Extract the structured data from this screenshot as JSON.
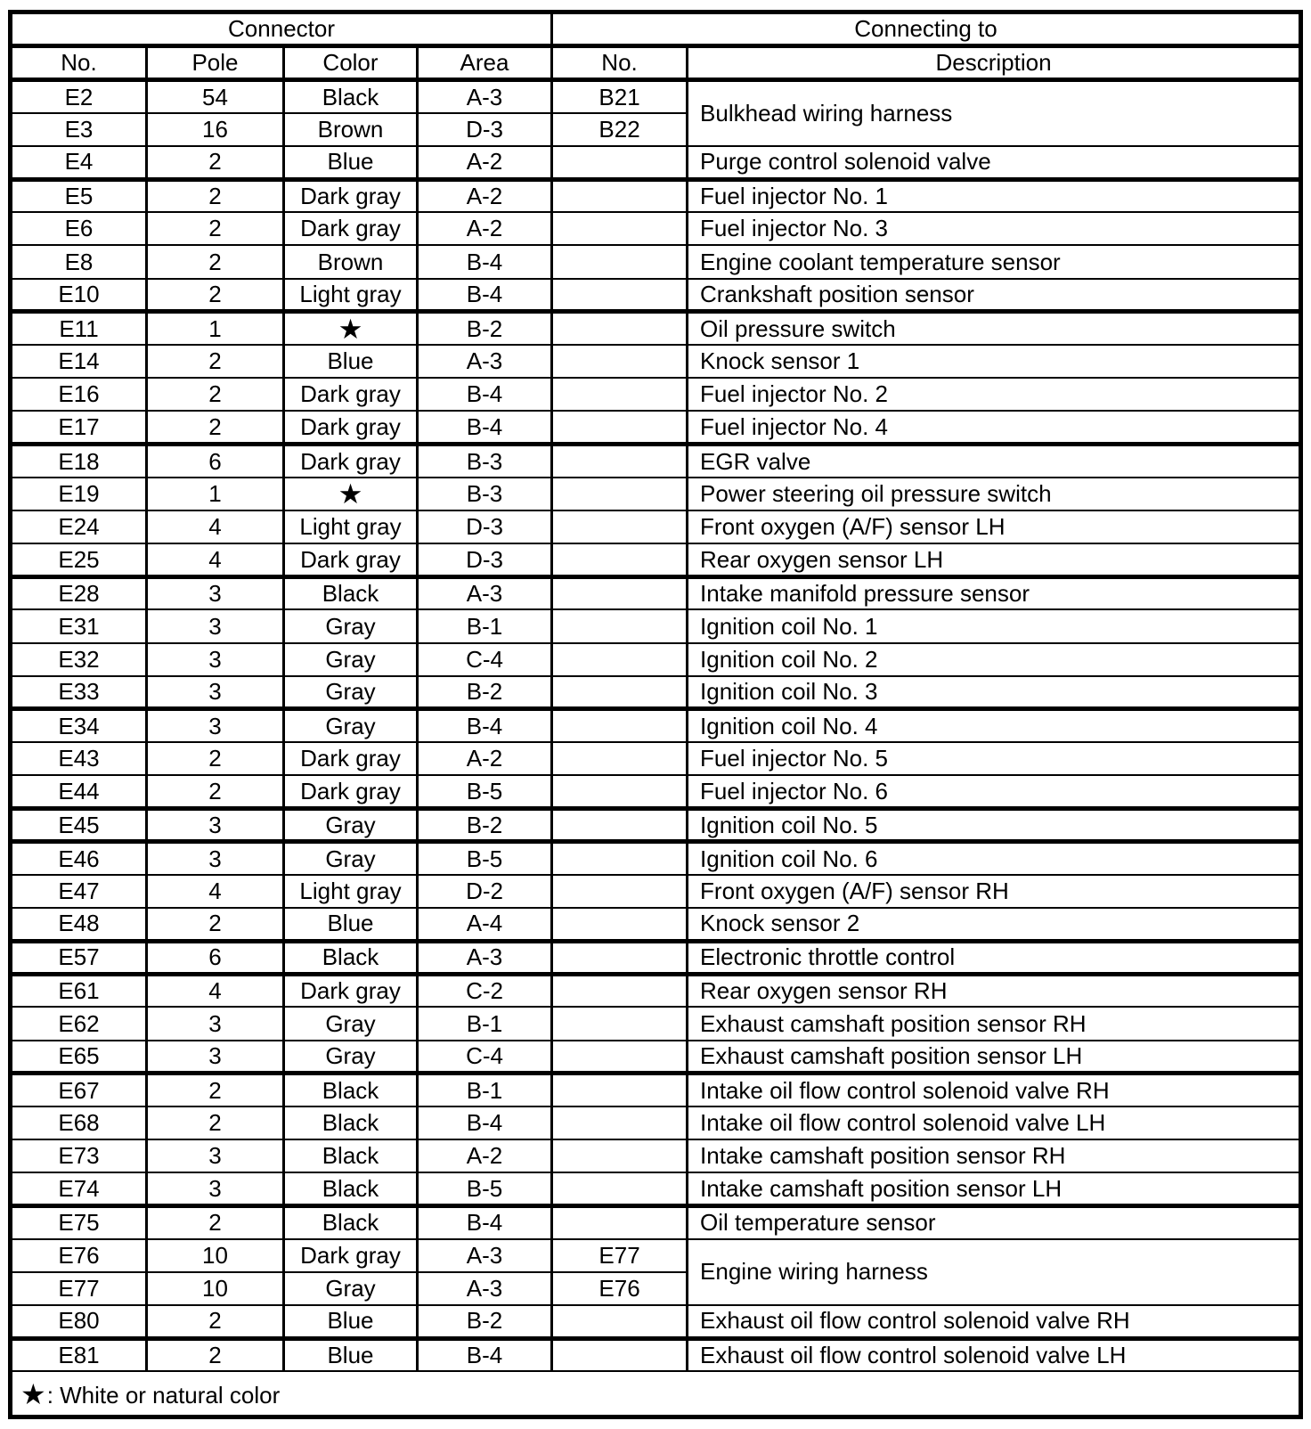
{
  "table": {
    "group_headers": {
      "connector": "Connector",
      "connecting_to": "Connecting to"
    },
    "columns": [
      "No.",
      "Pole",
      "Color",
      "Area",
      "No.",
      "Description"
    ],
    "rows": [
      {
        "no": "E2",
        "pole": "54",
        "color": "Black",
        "area": "A-3",
        "to_no": "B21",
        "description": "Bulkhead wiring harness",
        "desc_rowspan": 2
      },
      {
        "no": "E3",
        "pole": "16",
        "color": "Brown",
        "area": "D-3",
        "to_no": "B22",
        "desc_merged": true
      },
      {
        "no": "E4",
        "pole": "2",
        "color": "Blue",
        "area": "A-2",
        "to_no": "",
        "description": "Purge control solenoid valve",
        "thick": true
      },
      {
        "no": "E5",
        "pole": "2",
        "color": "Dark gray",
        "area": "A-2",
        "to_no": "",
        "description": "Fuel injector No. 1"
      },
      {
        "no": "E6",
        "pole": "2",
        "color": "Dark gray",
        "area": "A-2",
        "to_no": "",
        "description": "Fuel injector No. 3"
      },
      {
        "no": "E8",
        "pole": "2",
        "color": "Brown",
        "area": "B-4",
        "to_no": "",
        "description": "Engine coolant temperature sensor"
      },
      {
        "no": "E10",
        "pole": "2",
        "color": "Light gray",
        "area": "B-4",
        "to_no": "",
        "description": "Crankshaft position sensor",
        "thick": true
      },
      {
        "no": "E11",
        "pole": "1",
        "color": "★",
        "area": "B-2",
        "to_no": "",
        "description": "Oil pressure switch",
        "star": true
      },
      {
        "no": "E14",
        "pole": "2",
        "color": "Blue",
        "area": "A-3",
        "to_no": "",
        "description": "Knock sensor 1"
      },
      {
        "no": "E16",
        "pole": "2",
        "color": "Dark gray",
        "area": "B-4",
        "to_no": "",
        "description": "Fuel injector No. 2"
      },
      {
        "no": "E17",
        "pole": "2",
        "color": "Dark gray",
        "area": "B-4",
        "to_no": "",
        "description": "Fuel injector No. 4",
        "thick": true
      },
      {
        "no": "E18",
        "pole": "6",
        "color": "Dark gray",
        "area": "B-3",
        "to_no": "",
        "description": "EGR valve"
      },
      {
        "no": "E19",
        "pole": "1",
        "color": "★",
        "area": "B-3",
        "to_no": "",
        "description": "Power steering oil pressure switch",
        "star": true
      },
      {
        "no": "E24",
        "pole": "4",
        "color": "Light gray",
        "area": "D-3",
        "to_no": "",
        "description": "Front oxygen (A/F) sensor LH"
      },
      {
        "no": "E25",
        "pole": "4",
        "color": "Dark gray",
        "area": "D-3",
        "to_no": "",
        "description": "Rear oxygen sensor LH",
        "thick": true
      },
      {
        "no": "E28",
        "pole": "3",
        "color": "Black",
        "area": "A-3",
        "to_no": "",
        "description": "Intake manifold pressure sensor"
      },
      {
        "no": "E31",
        "pole": "3",
        "color": "Gray",
        "area": "B-1",
        "to_no": "",
        "description": "Ignition coil No. 1"
      },
      {
        "no": "E32",
        "pole": "3",
        "color": "Gray",
        "area": "C-4",
        "to_no": "",
        "description": "Ignition coil No. 2"
      },
      {
        "no": "E33",
        "pole": "3",
        "color": "Gray",
        "area": "B-2",
        "to_no": "",
        "description": "Ignition coil No. 3",
        "thick": true
      },
      {
        "no": "E34",
        "pole": "3",
        "color": "Gray",
        "area": "B-4",
        "to_no": "",
        "description": "Ignition coil No. 4"
      },
      {
        "no": "E43",
        "pole": "2",
        "color": "Dark gray",
        "area": "A-2",
        "to_no": "",
        "description": "Fuel injector No. 5"
      },
      {
        "no": "E44",
        "pole": "2",
        "color": "Dark gray",
        "area": "B-5",
        "to_no": "",
        "description": "Fuel injector No. 6",
        "thick": true
      },
      {
        "no": "E45",
        "pole": "3",
        "color": "Gray",
        "area": "B-2",
        "to_no": "",
        "description": "Ignition coil No. 5",
        "thick": true
      },
      {
        "no": "E46",
        "pole": "3",
        "color": "Gray",
        "area": "B-5",
        "to_no": "",
        "description": "Ignition coil No. 6"
      },
      {
        "no": "E47",
        "pole": "4",
        "color": "Light gray",
        "area": "D-2",
        "to_no": "",
        "description": "Front oxygen (A/F) sensor RH"
      },
      {
        "no": "E48",
        "pole": "2",
        "color": "Blue",
        "area": "A-4",
        "to_no": "",
        "description": "Knock sensor 2",
        "thick": true
      },
      {
        "no": "E57",
        "pole": "6",
        "color": "Black",
        "area": "A-3",
        "to_no": "",
        "description": "Electronic throttle control",
        "thick": true
      },
      {
        "no": "E61",
        "pole": "4",
        "color": "Dark gray",
        "area": "C-2",
        "to_no": "",
        "description": "Rear oxygen sensor RH"
      },
      {
        "no": "E62",
        "pole": "3",
        "color": "Gray",
        "area": "B-1",
        "to_no": "",
        "description": "Exhaust camshaft position sensor RH"
      },
      {
        "no": "E65",
        "pole": "3",
        "color": "Gray",
        "area": "C-4",
        "to_no": "",
        "description": "Exhaust camshaft position sensor LH",
        "thick": true
      },
      {
        "no": "E67",
        "pole": "2",
        "color": "Black",
        "area": "B-1",
        "to_no": "",
        "description": "Intake oil flow control solenoid valve RH"
      },
      {
        "no": "E68",
        "pole": "2",
        "color": "Black",
        "area": "B-4",
        "to_no": "",
        "description": "Intake oil flow control solenoid valve LH"
      },
      {
        "no": "E73",
        "pole": "3",
        "color": "Black",
        "area": "A-2",
        "to_no": "",
        "description": "Intake camshaft position sensor RH"
      },
      {
        "no": "E74",
        "pole": "3",
        "color": "Black",
        "area": "B-5",
        "to_no": "",
        "description": "Intake camshaft position sensor LH",
        "thick": true
      },
      {
        "no": "E75",
        "pole": "2",
        "color": "Black",
        "area": "B-4",
        "to_no": "",
        "description": "Oil temperature sensor"
      },
      {
        "no": "E76",
        "pole": "10",
        "color": "Dark gray",
        "area": "A-3",
        "to_no": "E77",
        "description": "Engine wiring harness",
        "desc_rowspan": 2
      },
      {
        "no": "E77",
        "pole": "10",
        "color": "Gray",
        "area": "A-3",
        "to_no": "E76",
        "desc_merged": true
      },
      {
        "no": "E80",
        "pole": "2",
        "color": "Blue",
        "area": "B-2",
        "to_no": "",
        "description": "Exhaust oil flow control solenoid valve RH",
        "thick": true
      },
      {
        "no": "E81",
        "pole": "2",
        "color": "Blue",
        "area": "B-4",
        "to_no": "",
        "description": "Exhaust oil flow control solenoid valve LH"
      }
    ],
    "footnote": {
      "symbol": "★",
      "text": ": White or natural color"
    }
  },
  "colors": {
    "border": "#000000",
    "background": "#ffffff",
    "text": "#000000"
  }
}
